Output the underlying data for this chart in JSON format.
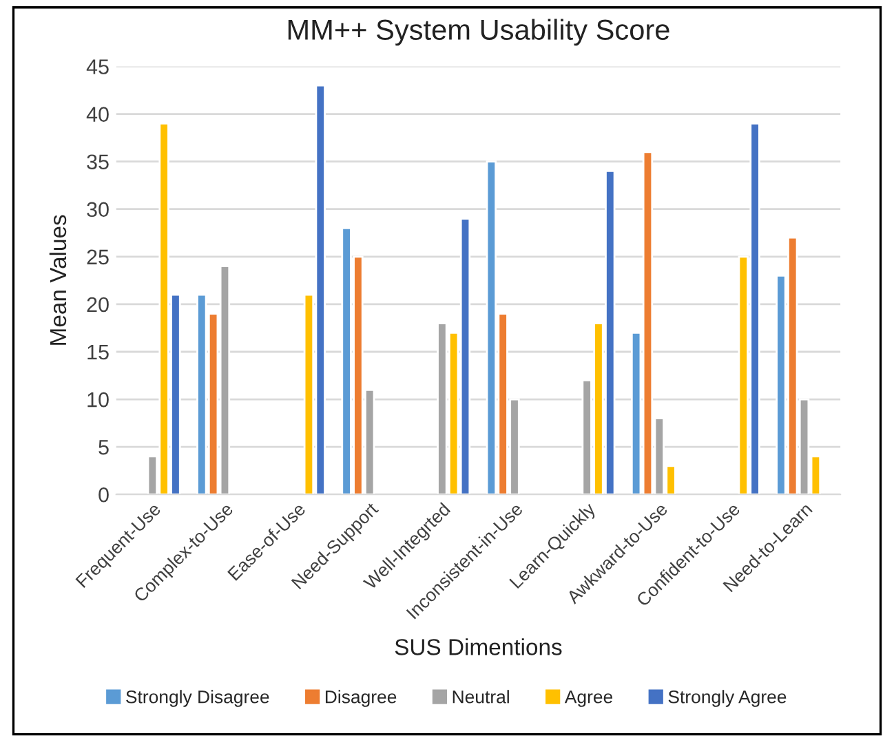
{
  "chart_data": {
    "type": "bar",
    "title": "MM++ System Usability Score",
    "xlabel": "SUS Dimentions",
    "ylabel": "Mean Values",
    "categories": [
      "Frequent-Use",
      "Complex-to-Use",
      "Ease-of-Use",
      "Need-Support",
      "Well-Integrted",
      "Inconsistent-in-Use",
      "Learn-Quickly",
      "Awkward-to-Use",
      "Confident-to-Use",
      "Need-to-Learn"
    ],
    "series": [
      {
        "name": "Strongly Disagree",
        "color": "#5b9bd5",
        "values": [
          null,
          21,
          null,
          28,
          null,
          35,
          null,
          17,
          null,
          23
        ]
      },
      {
        "name": "Disagree",
        "color": "#ed7d31",
        "values": [
          null,
          19,
          null,
          25,
          null,
          19,
          null,
          36,
          null,
          27
        ]
      },
      {
        "name": "Neutral",
        "color": "#a5a5a5",
        "values": [
          4,
          24,
          null,
          11,
          18,
          10,
          12,
          8,
          null,
          10
        ]
      },
      {
        "name": "Agree",
        "color": "#ffc000",
        "values": [
          39,
          null,
          21,
          null,
          17,
          null,
          18,
          3,
          25,
          4
        ]
      },
      {
        "name": "Strongly Agree",
        "color": "#4472c4",
        "values": [
          21,
          null,
          43,
          null,
          29,
          null,
          34,
          null,
          39,
          null
        ]
      }
    ],
    "ylim": [
      0,
      45
    ],
    "yticks": [
      0,
      5,
      10,
      15,
      20,
      25,
      30,
      35,
      40,
      45
    ],
    "grid": "y",
    "legend": "bottom"
  }
}
